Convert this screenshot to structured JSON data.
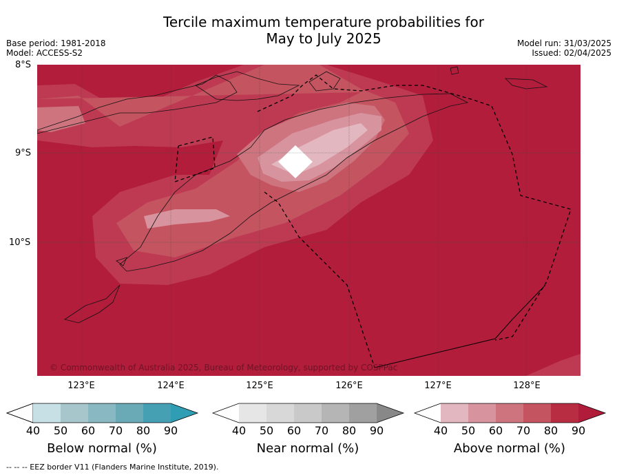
{
  "title_line1": "Tercile maximum temperature probabilities for",
  "title_line2": "May to July 2025",
  "meta": {
    "base_period": "Base period: 1981-2018",
    "model": "Model: ACCESS-S2",
    "model_run": "Model run: 31/03/2025",
    "issued": "Issued: 02/04/2025"
  },
  "lat_labels": [
    "8°S",
    "9°S",
    "10°S"
  ],
  "lon_labels": [
    "123°E",
    "124°E",
    "125°E",
    "126°E",
    "127°E",
    "128°E"
  ],
  "copyright": "© Commonwealth of Australia 2025, Bureau of Meteorology, supported by COSPPac",
  "colorbars": [
    {
      "title": "Below normal (%)",
      "ticks": [
        "40",
        "50",
        "60",
        "70",
        "80",
        "90"
      ],
      "colors": [
        "#c6e0e6",
        "#a7c6cc",
        "#8ab8c2",
        "#6aa9b6",
        "#45a0b3",
        "#2f9db3"
      ]
    },
    {
      "title": "Near normal (%)",
      "ticks": [
        "40",
        "50",
        "60",
        "70",
        "80",
        "90"
      ],
      "colors": [
        "#e6e6e6",
        "#d8d8d8",
        "#c9c9c9",
        "#b5b5b5",
        "#a0a0a0",
        "#888888"
      ]
    },
    {
      "title": "Above normal (%)",
      "ticks": [
        "40",
        "50",
        "60",
        "70",
        "80",
        "90"
      ],
      "colors": [
        "#e3b7bf",
        "#d7949f",
        "#cd747f",
        "#c4545f",
        "#b92d42",
        "#b01c3a"
      ]
    }
  ],
  "footer": "--  --  -- EEZ border V11 (Flanders Marine Institute, 2019)."
}
